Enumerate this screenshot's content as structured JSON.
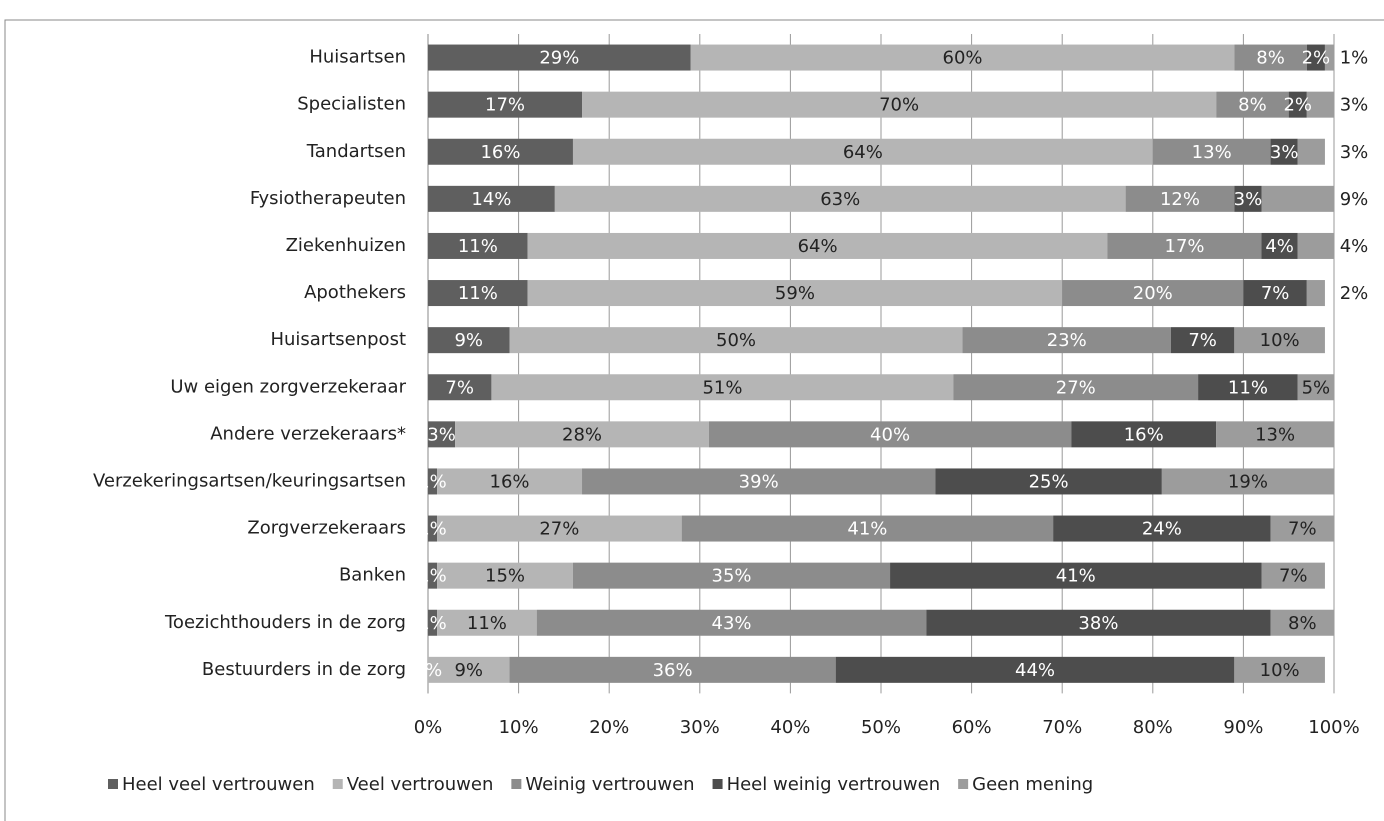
{
  "chart_data": {
    "type": "stacked-bar-horizontal",
    "categories": [
      "Huisartsen",
      "Specialisten",
      "Tandartsen",
      "Fysiotherapeuten",
      "Ziekenhuizen",
      "Apothekers",
      "Huisartsenpost",
      "Uw eigen zorgverzekeraar",
      "Andere verzekeraars*",
      "Verzekeringsartsen/keuringsartsen",
      "Zorgverzekeraars",
      "Banken",
      "Toezichthouders in de zorg",
      "Bestuurders in de zorg"
    ],
    "series": [
      {
        "name": "Heel veel vertrouwen",
        "color": "#5f5f5f",
        "values": [
          29,
          17,
          16,
          14,
          11,
          11,
          9,
          7,
          3,
          1,
          1,
          1,
          1,
          0
        ],
        "value_labels": [
          "29%",
          "17%",
          "16%",
          "14%",
          "11%",
          "11%",
          "9%",
          "7%",
          "3%",
          "1%",
          "1%",
          "1%",
          "1%",
          "0%"
        ]
      },
      {
        "name": "Veel vertrouwen",
        "color": "#b5b5b5",
        "values": [
          60,
          70,
          64,
          63,
          64,
          59,
          50,
          51,
          28,
          16,
          27,
          15,
          11,
          9
        ],
        "value_labels": [
          "60%",
          "70%",
          "64%",
          "63%",
          "64%",
          "59%",
          "50%",
          "51%",
          "28%",
          "16%",
          "27%",
          "15%",
          "11%",
          "9%"
        ]
      },
      {
        "name": "Weinig vertrouwen",
        "color": "#8c8c8c",
        "values": [
          8,
          8,
          13,
          12,
          17,
          20,
          23,
          27,
          40,
          39,
          41,
          35,
          43,
          36
        ],
        "value_labels": [
          "8%",
          "8%",
          "13%",
          "12%",
          "17%",
          "20%",
          "23%",
          "27%",
          "40%",
          "39%",
          "41%",
          "35%",
          "43%",
          "36%"
        ]
      },
      {
        "name": "Heel weinig vertrouwen",
        "color": "#4d4d4d",
        "values": [
          2,
          2,
          3,
          3,
          4,
          7,
          7,
          11,
          16,
          25,
          24,
          41,
          38,
          44
        ],
        "value_labels": [
          "2%",
          "2%",
          "3%",
          "3%",
          "4%",
          "7%",
          "7%",
          "11%",
          "16%",
          "25%",
          "24%",
          "41%",
          "38%",
          "44%"
        ]
      },
      {
        "name": "Geen mening",
        "color": "#9c9c9c",
        "values": [
          1,
          3,
          3,
          9,
          4,
          2,
          10,
          5,
          13,
          19,
          7,
          7,
          8,
          10
        ],
        "value_labels": [
          "1%",
          "3%",
          "3%",
          "9%",
          "4%",
          "2%",
          "10%",
          "5%",
          "13%",
          "19%",
          "7%",
          "7%",
          "8%",
          "10%"
        ]
      }
    ],
    "xlim": [
      0,
      100
    ],
    "xticks": [
      {
        "value": 0,
        "label": "0%"
      },
      {
        "value": 10,
        "label": "10%"
      },
      {
        "value": 20,
        "label": "20%"
      },
      {
        "value": 30,
        "label": "30%"
      },
      {
        "value": 40,
        "label": "40%"
      },
      {
        "value": 50,
        "label": "50%"
      },
      {
        "value": 60,
        "label": "60%"
      },
      {
        "value": 70,
        "label": "70%"
      },
      {
        "value": 80,
        "label": "80%"
      },
      {
        "value": 90,
        "label": "90%"
      },
      {
        "value": 100,
        "label": "100%"
      }
    ],
    "grid": true,
    "legend": "bottom"
  }
}
